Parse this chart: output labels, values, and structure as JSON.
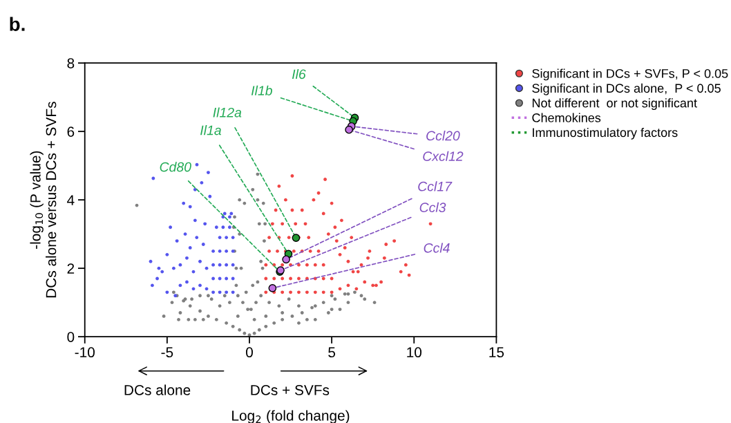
{
  "chart_data": {
    "type": "scatter",
    "xlabel": "Log$_{2}$ (fold change)",
    "ylabel": "-log$_{10}$ (P value)\nDCs alone versus DCs + SVFs",
    "xlim": [
      -10,
      15
    ],
    "ylim": [
      0,
      8
    ],
    "xticks": [
      {
        "value": -10,
        "label": "-10"
      },
      {
        "value": -5,
        "label": "-5"
      },
      0,
      5,
      10,
      15
    ],
    "yticks": [
      0,
      2,
      4,
      6,
      8
    ],
    "grid": false,
    "legend": "top right",
    "marker": "circle",
    "series": [
      {
        "name": "Not different  or not significant",
        "color": "#808080",
        "x": [
          0,
          -0.3,
          0.3,
          -0.6,
          0.6,
          -1,
          1,
          -1.4,
          1.5,
          -2,
          2,
          -2.5,
          2.6,
          -3,
          3.2,
          -3.6,
          3.8,
          -4,
          4.5,
          -4.4,
          5.2,
          -4.6,
          5.8,
          -5.2,
          6.4,
          7.6,
          -3.9,
          -4.7,
          -4.2,
          -6.84,
          -0.8,
          -0.5,
          -0.9,
          -0.6,
          -0.9,
          -0.3,
          0.5,
          0.7,
          0.9,
          0.6,
          0.85,
          -0.2,
          0.2,
          0.5,
          0.2,
          -0.1,
          0.1,
          -0.4,
          0.4,
          -0.7,
          0.7,
          -1.2,
          1.2,
          -1.8,
          1.8,
          -2.3,
          2.4,
          -2.8,
          3.0,
          -3.3,
          3.5,
          4.0,
          4.8,
          5.5,
          6.0,
          6.8,
          -1.5,
          -2.5,
          -3.0,
          -3.5,
          1.0,
          2.0,
          3.0,
          4.0,
          5.0,
          6.0,
          -0.95,
          0.95,
          -0.6,
          0.5,
          -0.8,
          0.8,
          -3.7,
          -4.3,
          7.0,
          5.0,
          -0.7,
          0.3
        ],
        "values": [
          0.05,
          0.1,
          0.1,
          0.2,
          0.2,
          0.3,
          0.3,
          0.4,
          0.4,
          0.5,
          0.5,
          0.6,
          0.6,
          0.75,
          0.7,
          0.9,
          0.85,
          1.05,
          1.0,
          1.2,
          1.1,
          1.3,
          1.25,
          0.6,
          1.3,
          1.0,
          1.1,
          1.0,
          0.7,
          3.84,
          1.5,
          2.0,
          2.5,
          3.0,
          3.5,
          3.9,
          1.6,
          2.2,
          2.8,
          3.3,
          3.9,
          1.3,
          1.5,
          4.75,
          4.3,
          0.8,
          0.8,
          1.0,
          1.0,
          1.2,
          1.2,
          1.0,
          1.0,
          0.9,
          0.9,
          1.1,
          1.1,
          0.5,
          0.4,
          0.5,
          0.5,
          0.5,
          0.7,
          0.8,
          1.0,
          1.2,
          1.2,
          1.2,
          1.2,
          1.1,
          0.6,
          0.7,
          0.9,
          0.9,
          1.2,
          1.25,
          3.2,
          3.3,
          4.0,
          4.0,
          2.0,
          2.0,
          0.5,
          0.5,
          1.1,
          0.8,
          0.6,
          0.5
        ]
      },
      {
        "name": "Significant in DCs + SVFs, P < 0.05",
        "color": "#f04545",
        "x": [
          1,
          1.5,
          2,
          2.5,
          3,
          3.5,
          4,
          4.5,
          5,
          1,
          1.5,
          2,
          2.5,
          3,
          3.5,
          4,
          4.5,
          5,
          1,
          1.5,
          2,
          2.5,
          3,
          3.5,
          4,
          4.5,
          1.2,
          1.7,
          2.2,
          2.7,
          3.2,
          3.7,
          4.2,
          1.2,
          1.8,
          2.4,
          3.0,
          3.6,
          1.4,
          2.0,
          2.8,
          3.4,
          1.6,
          2.6,
          3.2,
          2.6,
          4.6,
          1.8,
          4.2,
          3.9,
          2.2,
          5.5,
          6.0,
          6.5,
          7.0,
          7.5,
          8.0,
          8.3,
          8.8,
          9.2,
          9.5,
          9.7,
          11.0,
          7.7,
          6.3,
          5.5,
          6.0,
          6.8,
          7.2,
          5.3,
          5.8,
          4.8,
          5.2,
          5.6,
          6.2,
          4.5,
          5.0,
          7.3,
          6.6,
          8.2
        ],
        "values": [
          1.3,
          1.3,
          1.3,
          1.3,
          1.3,
          1.3,
          1.3,
          1.3,
          1.3,
          1.7,
          1.7,
          1.7,
          1.7,
          1.7,
          1.7,
          1.7,
          1.7,
          1.7,
          2.1,
          2.1,
          2.1,
          2.1,
          2.1,
          2.1,
          2.1,
          2.1,
          2.5,
          2.5,
          2.5,
          2.5,
          2.5,
          2.5,
          2.5,
          2.9,
          2.9,
          2.9,
          2.9,
          2.9,
          3.3,
          3.3,
          3.3,
          3.3,
          3.7,
          3.7,
          3.7,
          4.7,
          4.6,
          4.4,
          4.2,
          4.0,
          4.0,
          1.4,
          1.5,
          1.4,
          1.6,
          1.5,
          1.6,
          2.7,
          2.8,
          1.9,
          2.1,
          1.8,
          3.3,
          1.5,
          1.9,
          2.4,
          2.2,
          2.1,
          2.3,
          2.8,
          2.6,
          3.0,
          3.2,
          3.4,
          2.9,
          3.6,
          3.9,
          2.5,
          1.9,
          2.3
        ]
      },
      {
        "name": "Significant in DCs alone,  P < 0.05",
        "color": "#5555ee",
        "x": [
          -1.0,
          -1.4,
          -1.8,
          -2.2,
          -1.0,
          -1.4,
          -1.8,
          -2.2,
          -1.0,
          -1.4,
          -1.8,
          -2.2,
          -1.0,
          -1.4,
          -1.8,
          -2.2,
          -1.0,
          -1.4,
          -1.8,
          -1.2,
          -1.6,
          -2.0,
          -1.2,
          -1.6,
          -1.1,
          -1.5,
          -2.6,
          -3.0,
          -3.4,
          -3.8,
          -4.2,
          -2.6,
          -3.0,
          -3.4,
          -3.8,
          -4.2,
          -4.6,
          -2.8,
          -3.2,
          -3.6,
          -4.4,
          -5.0,
          -2.7,
          -3.3,
          -3.9,
          -4.8,
          -5.5,
          -5.9,
          -6.0,
          -5.3,
          -5.6,
          -3.19,
          -5.84,
          -4.0,
          -3.3,
          -2.9,
          -3.6,
          -2.4,
          -2.5,
          -4.5,
          -5.0
        ],
        "values": [
          1.3,
          1.3,
          1.3,
          1.3,
          1.7,
          1.7,
          1.7,
          1.7,
          2.1,
          2.1,
          2.1,
          2.1,
          2.5,
          2.5,
          2.5,
          2.5,
          2.9,
          2.9,
          2.9,
          3.2,
          3.2,
          3.2,
          3.5,
          3.5,
          3.6,
          3.6,
          1.4,
          1.5,
          1.4,
          1.6,
          1.5,
          2.0,
          2.2,
          1.9,
          2.3,
          2.1,
          2.0,
          2.7,
          2.9,
          2.6,
          2.8,
          2.4,
          3.3,
          3.4,
          3.0,
          3.2,
          2.0,
          1.5,
          2.2,
          1.9,
          1.7,
          5.03,
          4.63,
          3.9,
          4.3,
          4.5,
          3.8,
          4.1,
          4.8,
          1.2,
          1.3
        ]
      },
      {
        "name": "Chemokines",
        "color": "#c070e0",
        "line_style": "dotted",
        "x": [
          6.2,
          6.05,
          2.23,
          1.89,
          1.4
        ],
        "values": [
          6.15,
          6.05,
          2.26,
          1.94,
          1.42
        ]
      },
      {
        "name": "Immunostimulatory factors",
        "color": "#229933",
        "line_style": "dotted",
        "x": [
          6.4,
          6.3,
          2.83,
          2.37,
          1.85
        ],
        "values": [
          6.4,
          6.3,
          2.89,
          2.42,
          1.9
        ]
      }
    ],
    "annotations": [
      "b.",
      "DCs alone",
      "DCs + SVFs",
      {
        "text": "Ccl20",
        "x": 6.2,
        "y": 6.15
      },
      {
        "text": "Cxcl12",
        "x": 6.05,
        "y": 6.05
      },
      {
        "text": "Ccl17",
        "x": 2.23,
        "y": 2.26
      },
      {
        "text": "Ccl3",
        "x": 1.89,
        "y": 1.94
      },
      {
        "text": "Ccl4",
        "x": 1.4,
        "y": 1.42
      },
      {
        "text": "Il6",
        "x": 6.4,
        "y": 6.4
      },
      {
        "text": "Il1b",
        "x": 6.3,
        "y": 6.3
      },
      {
        "text": "Il12a",
        "x": 2.83,
        "y": 2.89
      },
      {
        "text": "Il1a",
        "x": 2.37,
        "y": 2.42
      },
      {
        "text": "Cd80",
        "x": 1.85,
        "y": 1.9
      }
    ]
  }
}
